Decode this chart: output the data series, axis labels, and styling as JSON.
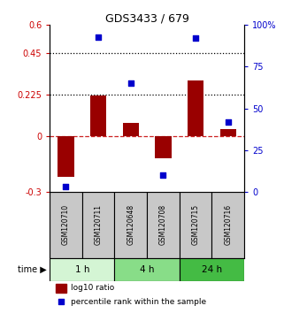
{
  "title": "GDS3433 / 679",
  "samples": [
    "GSM120710",
    "GSM120711",
    "GSM120648",
    "GSM120708",
    "GSM120715",
    "GSM120716"
  ],
  "log10_ratio": [
    -0.22,
    0.22,
    0.07,
    -0.12,
    0.3,
    0.04
  ],
  "percentile_rank": [
    3,
    93,
    65,
    10,
    92,
    42
  ],
  "left_ylim": [
    -0.3,
    0.6
  ],
  "right_ylim": [
    0,
    100
  ],
  "left_yticks": [
    -0.3,
    0,
    0.225,
    0.45,
    0.6
  ],
  "right_yticks": [
    0,
    25,
    50,
    75,
    100
  ],
  "right_yticklabels": [
    "0",
    "25",
    "50",
    "75",
    "100%"
  ],
  "hlines_dotted": [
    0.45,
    0.225
  ],
  "hline_dashed": 0,
  "bar_color": "#990000",
  "dot_color": "#0000cc",
  "time_groups": [
    {
      "label": "1 h",
      "cols": [
        0,
        1
      ],
      "color": "#d4f5d4"
    },
    {
      "label": "4 h",
      "cols": [
        2,
        3
      ],
      "color": "#88dd88"
    },
    {
      "label": "24 h",
      "cols": [
        4,
        5
      ],
      "color": "#44bb44"
    }
  ],
  "legend_bar_label": "log10 ratio",
  "legend_dot_label": "percentile rank within the sample",
  "sample_box_color": "#c8c8c8",
  "bar_width": 0.5
}
